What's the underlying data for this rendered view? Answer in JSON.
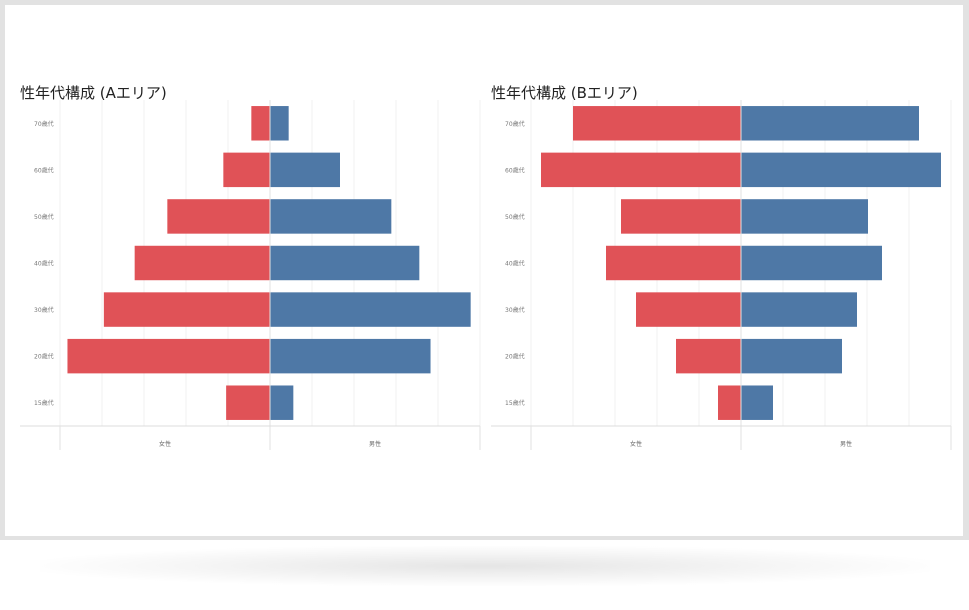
{
  "chart_data": [
    {
      "type": "bar",
      "title": "性年代構成 (Aエリア)",
      "categories": [
        "70歳代",
        "60歳代",
        "50歳代",
        "40歳代",
        "30歳代",
        "20歳代",
        "15歳代"
      ],
      "series": [
        {
          "name": "女性",
          "values": [
            0.2,
            0.5,
            1.1,
            1.45,
            1.78,
            2.17,
            0.47
          ],
          "color": "#e05257"
        },
        {
          "name": "男性",
          "values": [
            0.2,
            0.75,
            1.3,
            1.6,
            2.15,
            1.72,
            0.25
          ],
          "color": "#4e78a6"
        }
      ],
      "xlabel_left": "女性",
      "xlabel_right": "男性",
      "xlim": [
        -2.25,
        2.25
      ],
      "grid": true
    },
    {
      "type": "bar",
      "title": "性年代構成 (Bエリア)",
      "categories": [
        "70歳代",
        "60歳代",
        "50歳代",
        "40歳代",
        "30歳代",
        "20歳代",
        "15歳代"
      ],
      "series": [
        {
          "name": "女性",
          "values": [
            1.68,
            2.0,
            1.2,
            1.35,
            1.05,
            0.65,
            0.23
          ],
          "color": "#e05257"
        },
        {
          "name": "男性",
          "values": [
            1.78,
            2.0,
            1.27,
            1.41,
            1.16,
            1.01,
            0.32
          ],
          "color": "#4e78a6"
        }
      ],
      "xlabel_left": "女性",
      "xlabel_right": "男性",
      "xlim": [
        -2.1,
        2.1
      ],
      "grid": true
    }
  ]
}
